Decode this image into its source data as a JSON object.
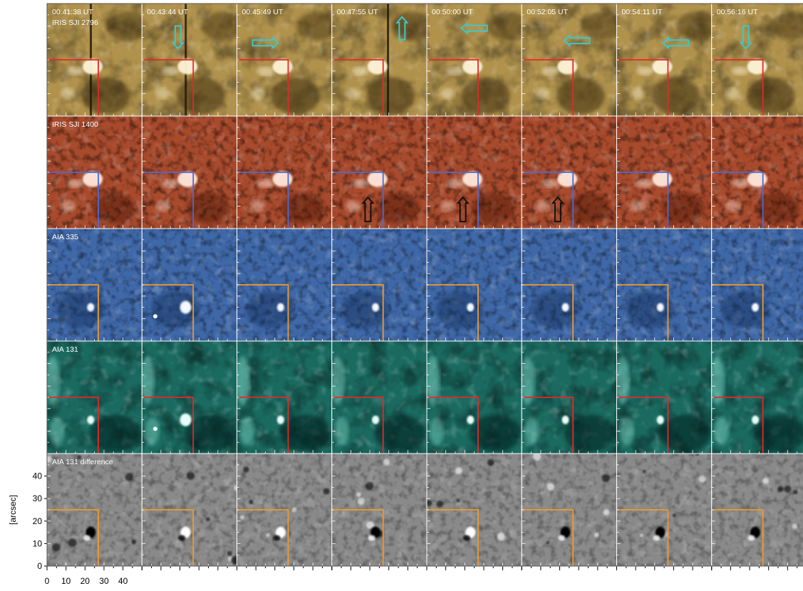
{
  "timestamps": [
    "00:41:38 UT",
    "00:43:44 UT",
    "00:45:49 UT",
    "00:47:55 UT",
    "00:50:00 UT",
    "00:52:05 UT",
    "00:54:11 UT",
    "00:56:16 UT"
  ],
  "rows": [
    {
      "label": "IRIS SJI 2796",
      "theme": "iris2796",
      "base": "#b0924c",
      "box_color": "#e8272a"
    },
    {
      "label": "IRIS SJI 1400",
      "theme": "iris1400",
      "base": "#a84a2c",
      "box_color": "#4a6bd8"
    },
    {
      "label": "AIA 335",
      "theme": "aia335",
      "base": "#3f68a8",
      "box_color": "#f09a2a"
    },
    {
      "label": "AIA 131",
      "theme": "aia131",
      "base": "#1a6a60",
      "box_color": "#e8272a"
    },
    {
      "label": "AIA 131 difference",
      "theme": "diff",
      "base": "#8a8a8a",
      "box_color": "#f09a2a"
    }
  ],
  "arrows_2796": [
    {
      "col": 1,
      "dir": "down"
    },
    {
      "col": 2,
      "dir": "right"
    },
    {
      "col": 3,
      "dir": "up"
    },
    {
      "col": 4,
      "dir": "left"
    },
    {
      "col": 5,
      "dir": "left"
    },
    {
      "col": 6,
      "dir": "left"
    },
    {
      "col": 7,
      "dir": "down"
    }
  ],
  "arrows_1400": [
    {
      "col": 3,
      "dir": "up"
    },
    {
      "col": 4,
      "dir": "up"
    },
    {
      "col": 5,
      "dir": "up"
    }
  ],
  "arrow_colors": {
    "cyan": "#3ec7c9",
    "black": "#111111"
  },
  "axes": {
    "y_label": "[arcsec]",
    "y_ticks": [
      0,
      10,
      20,
      30,
      40
    ],
    "x_ticks": [
      0,
      10,
      20,
      30,
      40
    ],
    "range_arcsec": 50
  }
}
